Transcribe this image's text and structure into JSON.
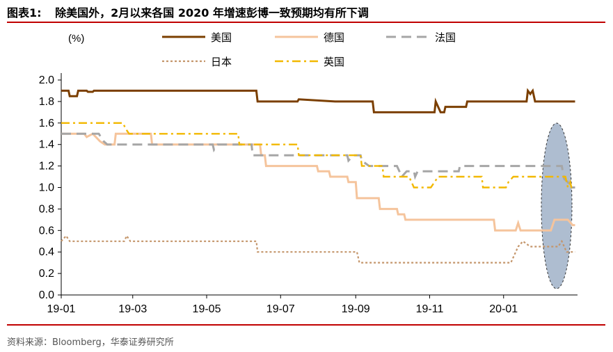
{
  "header": {
    "figure_label": "图表1:",
    "title": "除美国外，2月以来各国 2020 年增速彭博一致预期均有所下调"
  },
  "footer": {
    "source": "资料来源：Bloomberg，华泰证券研究所"
  },
  "colors": {
    "us": "#7b3f00",
    "germany": "#f5c49c",
    "france": "#a6a6a6",
    "japan": "#c4956a",
    "uk": "#f2b800",
    "highlight_fill": "#aebdd0",
    "rule": "#c00000"
  },
  "chart_data": {
    "type": "line",
    "ylabel": "(%)",
    "ylim": [
      0.0,
      2.0
    ],
    "yticks": [
      "0.0",
      "0.2",
      "0.4",
      "0.6",
      "0.8",
      "1.0",
      "1.2",
      "1.4",
      "1.6",
      "1.8",
      "2.0"
    ],
    "xlim": [
      "2019-01-01",
      "2020-03-02"
    ],
    "xticks": [
      {
        "date": "2019-01-01",
        "label": "19-01"
      },
      {
        "date": "2019-03-01",
        "label": "19-03"
      },
      {
        "date": "2019-05-01",
        "label": "19-05"
      },
      {
        "date": "2019-07-01",
        "label": "19-07"
      },
      {
        "date": "2019-09-01",
        "label": "19-09"
      },
      {
        "date": "2019-11-01",
        "label": "19-11"
      },
      {
        "date": "2020-01-01",
        "label": "20-01"
      }
    ],
    "legend_position": "top",
    "series": [
      {
        "key": "us",
        "name": "美国",
        "dash": "solid",
        "points": [
          [
            "2019-01-01",
            1.9
          ],
          [
            "2019-01-07",
            1.9
          ],
          [
            "2019-01-08",
            1.85
          ],
          [
            "2019-01-14",
            1.85
          ],
          [
            "2019-01-15",
            1.9
          ],
          [
            "2019-01-22",
            1.9
          ],
          [
            "2019-01-23",
            1.89
          ],
          [
            "2019-01-27",
            1.89
          ],
          [
            "2019-01-28",
            1.9
          ],
          [
            "2019-02-28",
            1.9
          ],
          [
            "2019-06-11",
            1.9
          ],
          [
            "2019-06-12",
            1.8
          ],
          [
            "2019-07-15",
            1.8
          ],
          [
            "2019-07-16",
            1.82
          ],
          [
            "2019-08-15",
            1.8
          ],
          [
            "2019-09-15",
            1.8
          ],
          [
            "2019-09-16",
            1.7
          ],
          [
            "2019-11-05",
            1.7
          ],
          [
            "2019-11-06",
            1.8
          ],
          [
            "2019-11-10",
            1.7
          ],
          [
            "2019-11-13",
            1.7
          ],
          [
            "2019-11-14",
            1.75
          ],
          [
            "2019-12-01",
            1.75
          ],
          [
            "2019-12-02",
            1.8
          ],
          [
            "2020-01-20",
            1.8
          ],
          [
            "2020-01-21",
            1.9
          ],
          [
            "2020-01-23",
            1.87
          ],
          [
            "2020-01-25",
            1.9
          ],
          [
            "2020-01-27",
            1.8
          ],
          [
            "2020-02-29",
            1.8
          ]
        ]
      },
      {
        "key": "germany",
        "name": "德国",
        "dash": "solid",
        "points": [
          [
            "2019-01-01",
            1.5
          ],
          [
            "2019-01-20",
            1.5
          ],
          [
            "2019-01-22",
            1.47
          ],
          [
            "2019-01-27",
            1.5
          ],
          [
            "2019-02-02",
            1.43
          ],
          [
            "2019-02-06",
            1.4
          ],
          [
            "2019-02-14",
            1.4
          ],
          [
            "2019-02-15",
            1.5
          ],
          [
            "2019-03-01",
            1.5
          ],
          [
            "2019-03-16",
            1.5
          ],
          [
            "2019-03-17",
            1.4
          ],
          [
            "2019-06-14",
            1.4
          ],
          [
            "2019-06-15",
            1.3
          ],
          [
            "2019-06-18",
            1.3
          ],
          [
            "2019-06-19",
            1.2
          ],
          [
            "2019-07-31",
            1.2
          ],
          [
            "2019-08-01",
            1.15
          ],
          [
            "2019-08-10",
            1.15
          ],
          [
            "2019-08-11",
            1.1
          ],
          [
            "2019-08-25",
            1.1
          ],
          [
            "2019-08-26",
            1.05
          ],
          [
            "2019-09-01",
            1.05
          ],
          [
            "2019-09-02",
            0.9
          ],
          [
            "2019-09-20",
            0.9
          ],
          [
            "2019-09-21",
            0.8
          ],
          [
            "2019-10-05",
            0.8
          ],
          [
            "2019-10-06",
            0.75
          ],
          [
            "2019-10-11",
            0.75
          ],
          [
            "2019-10-12",
            0.7
          ],
          [
            "2019-12-24",
            0.7
          ],
          [
            "2019-12-25",
            0.6
          ],
          [
            "2020-01-11",
            0.6
          ],
          [
            "2020-01-13",
            0.67
          ],
          [
            "2020-01-15",
            0.6
          ],
          [
            "2020-02-09",
            0.6
          ],
          [
            "2020-02-12",
            0.7
          ],
          [
            "2020-02-23",
            0.7
          ],
          [
            "2020-02-27",
            0.65
          ],
          [
            "2020-02-29",
            0.65
          ]
        ]
      },
      {
        "key": "france",
        "name": "法国",
        "dash": "dash",
        "points": [
          [
            "2019-01-01",
            1.5
          ],
          [
            "2019-02-01",
            1.5
          ],
          [
            "2019-02-05",
            1.43
          ],
          [
            "2019-02-08",
            1.4
          ],
          [
            "2019-05-06",
            1.4
          ],
          [
            "2019-05-07",
            1.35
          ],
          [
            "2019-05-10",
            1.4
          ],
          [
            "2019-06-07",
            1.4
          ],
          [
            "2019-06-08",
            1.3
          ],
          [
            "2019-08-25",
            1.3
          ],
          [
            "2019-08-26",
            1.25
          ],
          [
            "2019-08-30",
            1.3
          ],
          [
            "2019-09-05",
            1.3
          ],
          [
            "2019-09-06",
            1.25
          ],
          [
            "2019-09-12",
            1.2
          ],
          [
            "2019-10-05",
            1.2
          ],
          [
            "2019-10-07",
            1.15
          ],
          [
            "2019-10-09",
            1.1
          ],
          [
            "2019-10-13",
            1.15
          ],
          [
            "2019-10-19",
            1.15
          ],
          [
            "2019-10-20",
            1.1
          ],
          [
            "2019-10-22",
            1.15
          ],
          [
            "2019-11-10",
            1.15
          ],
          [
            "2019-11-25",
            1.15
          ],
          [
            "2019-11-26",
            1.2
          ],
          [
            "2020-02-18",
            1.2
          ],
          [
            "2020-02-20",
            1.08
          ],
          [
            "2020-02-23",
            1.05
          ],
          [
            "2020-02-25",
            1.0
          ],
          [
            "2020-02-29",
            1.0
          ]
        ]
      },
      {
        "key": "japan",
        "name": "日本",
        "dash": "dot",
        "points": [
          [
            "2019-01-01",
            0.5
          ],
          [
            "2019-01-05",
            0.55
          ],
          [
            "2019-01-08",
            0.5
          ],
          [
            "2019-02-22",
            0.5
          ],
          [
            "2019-02-24",
            0.55
          ],
          [
            "2019-02-27",
            0.5
          ],
          [
            "2019-06-11",
            0.5
          ],
          [
            "2019-06-12",
            0.4
          ],
          [
            "2019-09-02",
            0.4
          ],
          [
            "2019-09-04",
            0.3
          ],
          [
            "2020-01-07",
            0.3
          ],
          [
            "2020-01-09",
            0.35
          ],
          [
            "2020-01-13",
            0.45
          ],
          [
            "2020-01-17",
            0.5
          ],
          [
            "2020-01-23",
            0.45
          ],
          [
            "2020-02-15",
            0.45
          ],
          [
            "2020-02-18",
            0.5
          ],
          [
            "2020-02-22",
            0.4
          ],
          [
            "2020-02-29",
            0.4
          ]
        ]
      },
      {
        "key": "uk",
        "name": "英国",
        "dash": "dashdot",
        "points": [
          [
            "2019-01-01",
            1.6
          ],
          [
            "2019-02-21",
            1.6
          ],
          [
            "2019-02-23",
            1.55
          ],
          [
            "2019-02-26",
            1.5
          ],
          [
            "2019-03-10",
            1.5
          ],
          [
            "2019-03-11",
            1.5
          ],
          [
            "2019-05-27",
            1.5
          ],
          [
            "2019-05-28",
            1.4
          ],
          [
            "2019-07-15",
            1.4
          ],
          [
            "2019-07-16",
            1.3
          ],
          [
            "2019-09-05",
            1.3
          ],
          [
            "2019-09-06",
            1.2
          ],
          [
            "2019-09-23",
            1.2
          ],
          [
            "2019-09-24",
            1.1
          ],
          [
            "2019-10-15",
            1.1
          ],
          [
            "2019-10-17",
            1.05
          ],
          [
            "2019-10-19",
            1.0
          ],
          [
            "2019-11-02",
            1.0
          ],
          [
            "2019-11-05",
            1.05
          ],
          [
            "2019-11-08",
            1.1
          ],
          [
            "2019-12-14",
            1.1
          ],
          [
            "2019-12-15",
            1.0
          ],
          [
            "2020-01-03",
            1.0
          ],
          [
            "2020-01-05",
            1.05
          ],
          [
            "2020-01-09",
            1.1
          ],
          [
            "2020-02-21",
            1.1
          ],
          [
            "2020-02-23",
            1.0
          ],
          [
            "2020-02-25",
            1.05
          ],
          [
            "2020-02-26",
            1.0
          ],
          [
            "2020-02-29",
            1.0
          ]
        ]
      }
    ]
  }
}
